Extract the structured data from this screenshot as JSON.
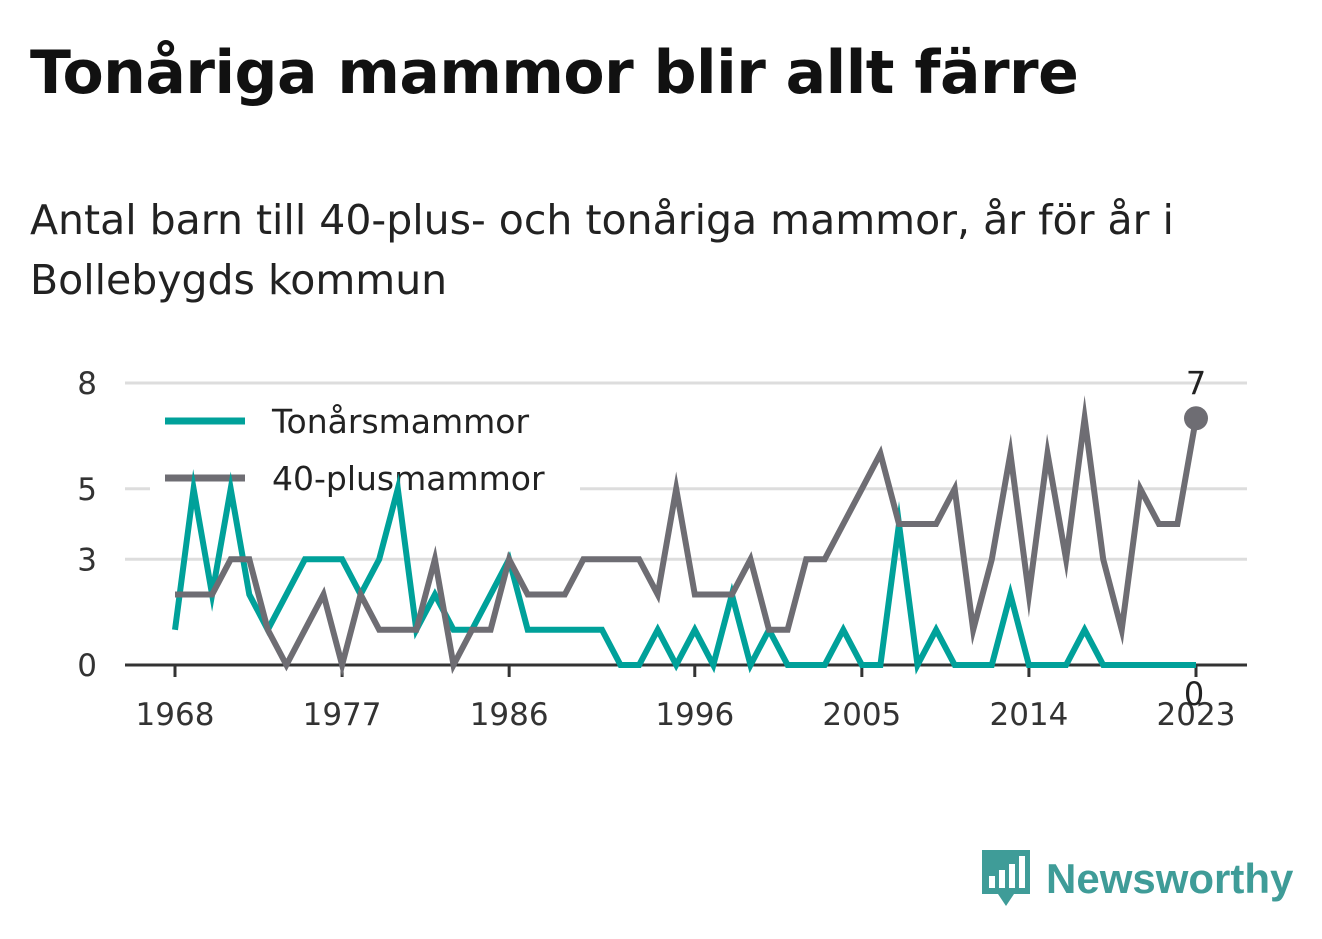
{
  "title": "Tonåriga mammor blir allt färre",
  "subtitle": "Antal barn till 40-plus- och tonåriga mammor, år för år i Bollebygds kommun",
  "brand": "Newsworthy",
  "colors": {
    "teen": "#00a19a",
    "plus40": "#6e6d73",
    "grid": "#dddddd",
    "axis": "#333333",
    "brand": "#3f9c98"
  },
  "chart_data": {
    "type": "line",
    "title": "Tonåriga mammor blir allt färre",
    "subtitle": "Antal barn till 40-plus- och tonåriga mammor, år för år i Bollebygds kommun",
    "xlabel": "",
    "ylabel": "",
    "xlim": [
      1968,
      2023
    ],
    "ylim": [
      0,
      8
    ],
    "x_ticks": [
      1968,
      1977,
      1986,
      1996,
      2005,
      2014,
      2023
    ],
    "y_ticks": [
      0,
      3,
      5,
      8
    ],
    "grid": true,
    "legend_position": "top-left",
    "x": [
      1968,
      1969,
      1970,
      1971,
      1972,
      1973,
      1974,
      1975,
      1976,
      1977,
      1978,
      1979,
      1980,
      1981,
      1982,
      1983,
      1984,
      1985,
      1986,
      1987,
      1988,
      1989,
      1990,
      1991,
      1992,
      1993,
      1994,
      1995,
      1996,
      1997,
      1998,
      1999,
      2000,
      2001,
      2002,
      2003,
      2004,
      2005,
      2006,
      2007,
      2008,
      2009,
      2010,
      2011,
      2012,
      2013,
      2014,
      2015,
      2016,
      2017,
      2018,
      2019,
      2020,
      2021,
      2022,
      2023
    ],
    "series": [
      {
        "name": "Tonårsmammor",
        "values": [
          1,
          5,
          2,
          5,
          2,
          1,
          2,
          3,
          3,
          3,
          2,
          3,
          5,
          1,
          2,
          1,
          1,
          2,
          3,
          1,
          1,
          1,
          1,
          1,
          0,
          0,
          1,
          0,
          1,
          0,
          2,
          0,
          1,
          0,
          0,
          0,
          1,
          0,
          0,
          4,
          0,
          1,
          0,
          0,
          0,
          2,
          0,
          0,
          0,
          1,
          0,
          0,
          0,
          0,
          0,
          0
        ],
        "end_label": "0"
      },
      {
        "name": "40-plusmammor",
        "values": [
          2,
          2,
          2,
          3,
          3,
          1,
          0,
          1,
          2,
          0,
          2,
          1,
          1,
          1,
          3,
          0,
          1,
          1,
          3,
          2,
          2,
          2,
          3,
          3,
          3,
          3,
          2,
          5,
          2,
          2,
          2,
          3,
          1,
          1,
          3,
          3,
          4,
          5,
          6,
          4,
          4,
          4,
          5,
          1,
          3,
          6,
          2,
          6,
          3,
          7,
          3,
          1,
          5,
          4,
          4,
          7
        ],
        "end_label": "7"
      }
    ]
  }
}
